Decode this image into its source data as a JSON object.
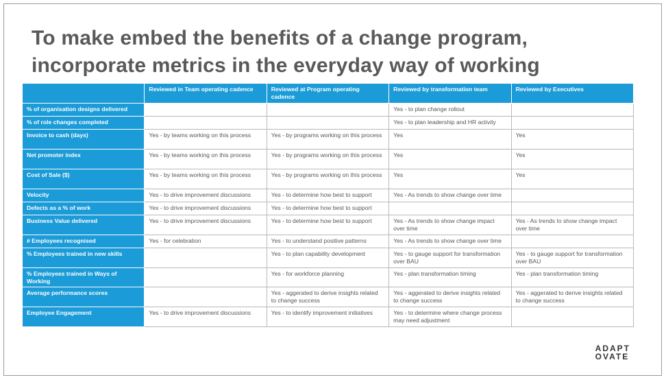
{
  "header": {
    "title": [
      "To make embed the benefits of a change program,",
      "incorporate metrics in the everyday way of working"
    ]
  },
  "table": {
    "columns": [
      "Reviewed in Team operating cadence",
      "Reviewed at Program operating cadence",
      "Reviewed by transformation team",
      "Reviewed by Executives"
    ],
    "rows": [
      [
        "% of organisation designs delivered",
        null,
        null,
        "Yes - to plan change rollout",
        null
      ],
      [
        "% of role changes completed",
        null,
        null,
        "Yes - to plan leadership and HR activity",
        null
      ],
      [
        "Invoice to cash (days)",
        "Yes - by teams working on this process",
        "Yes - by programs working on this process",
        "Yes",
        "Yes"
      ],
      [
        "Net promoter index",
        "Yes - by teams working on this process",
        "Yes - by programs working on this process",
        "Yes",
        "Yes"
      ],
      [
        "Cost of Sale ($)",
        "Yes - by teams working on this process",
        "Yes - by programs working on this process",
        "Yes",
        "Yes"
      ],
      [
        "Velocity",
        "Yes - to drive improvement discussions",
        "Yes - to determine how best to support",
        "Yes - As trends to show change over time",
        null
      ],
      [
        "Defects as a % of work",
        "Yes - to drive improvement discussions",
        "Yes - to determine how best to support",
        null,
        null
      ],
      [
        "Business Value delivered",
        "Yes - to drive improvement discussions",
        "Yes - to determine how best to support",
        "Yes - As trends to show change impact over time",
        "Yes - As trends to show change impact over time"
      ],
      [
        "# Employees recognised",
        "Yes - for celebration",
        "Yes - to understand positive patterns",
        "Yes - As trends to show change over time",
        null
      ],
      [
        "% Employees trained in new skills",
        null,
        "Yes - to plan capability development",
        "Yes - to gauge support for transformation over BAU",
        "Yes - to gauge support for transformation over BAU"
      ],
      [
        "% Employees trained in Ways of Working",
        null,
        "Yes - for workforce planning",
        "Yes - plan transformation timing",
        "Yes - plan transformation timing"
      ],
      [
        "Average performance scores",
        null,
        "Yes - aggerated to derive insights related to change success",
        "Yes - aggerated to derive insights related to change success",
        "Yes - aggerated to derive insights related to change success"
      ],
      [
        "Employee Engagement",
        "Yes - to drive improvement discussions",
        "Yes - to identify improvement initiatives",
        "Yes - to determine where change process may need adjustment",
        null
      ]
    ]
  },
  "logo": [
    "ADAPT",
    "OVATE"
  ]
}
